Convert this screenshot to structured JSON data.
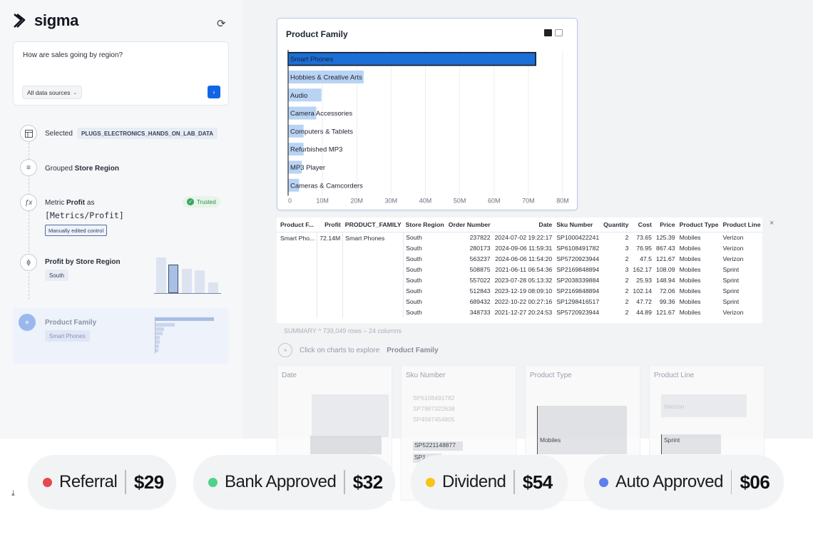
{
  "app": {
    "brand": "sigma",
    "refresh_icon": "refresh-icon"
  },
  "prompt": {
    "question": "How are sales going by region?",
    "source_label": "All data sources",
    "send_icon": "arrow-right-icon"
  },
  "steps": {
    "selected": {
      "label": "Selected",
      "value": "PLUGS_ELECTRONICS_HANDS_ON_LAB_DATA"
    },
    "grouped": {
      "label": "Grouped",
      "value": "Store Region"
    },
    "metric": {
      "label": "Metric",
      "value": "Profit",
      "suffix": "as",
      "formula": "[Metrics/Profit]",
      "note": "Manually edited control",
      "badge": "Trusted"
    },
    "profit_region": {
      "title": "Profit by Store Region",
      "chip": "South"
    },
    "product_family": {
      "title": "Product Family",
      "chip": "Smart Phones"
    }
  },
  "chart_data": {
    "type": "bar",
    "orientation": "horizontal",
    "title": "Product Family",
    "categories": [
      "Smart Phones",
      "Hobbies & Creative Arts",
      "Audio",
      "Camera Accessories",
      "Computers & Tablets",
      "Refurbished MP3",
      "MP3 Player",
      "Cameras & Camcorders"
    ],
    "values": [
      72.14,
      22,
      9.7,
      8.2,
      4.5,
      4.5,
      4.0,
      3.2
    ],
    "unit": "M",
    "xlim": [
      0,
      80
    ],
    "x_ticks": [
      "0",
      "10M",
      "20M",
      "30M",
      "40M",
      "50M",
      "60M",
      "70M",
      "80M"
    ],
    "highlighted": "Smart Phones",
    "colors": {
      "selected": "#1b6fd6",
      "other": "#b9d3f3"
    },
    "grid": true
  },
  "table": {
    "headers": [
      "Product F...",
      "Profit",
      "PRODUCT_FAMILY",
      "Store Region",
      "Order Number",
      "Date",
      "Sku Number",
      "Quantity",
      "Cost",
      "Price",
      "Product Type",
      "Product Line"
    ],
    "group": {
      "name": "Smart Pho...",
      "profit": "72.14M",
      "family": "Smart Phones"
    },
    "rows": [
      [
        "South",
        "237822",
        "2024-07-02 19:22:17",
        "SP1000422241",
        "2",
        "73.65",
        "125.39",
        "Mobiles",
        "Verizon"
      ],
      [
        "South",
        "280173",
        "2024-09-06 11:59:31",
        "SP6108491782",
        "3",
        "76.95",
        "867.43",
        "Mobiles",
        "Verizon"
      ],
      [
        "South",
        "563237",
        "2024-06-06 11:54:20",
        "SP5720923944",
        "2",
        "47.5",
        "121.67",
        "Mobiles",
        "Verizon"
      ],
      [
        "South",
        "508875",
        "2021-06-11 06:54:36",
        "SP2169848894",
        "3",
        "162.17",
        "108.09",
        "Mobiles",
        "Sprint"
      ],
      [
        "South",
        "557022",
        "2023-07-28 05:13:32",
        "SP2038339884",
        "2",
        "25.93",
        "148.94",
        "Mobiles",
        "Sprint"
      ],
      [
        "South",
        "512843",
        "2023-12-19 08:09:10",
        "SP2169848894",
        "2",
        "102.14",
        "72.06",
        "Mobiles",
        "Sprint"
      ],
      [
        "South",
        "689432",
        "2022-10-22 00:27:16",
        "SP1298416517",
        "2",
        "47.72",
        "99.36",
        "Mobiles",
        "Sprint"
      ],
      [
        "South",
        "348733",
        "2021-12-27 20:24:53",
        "SP5720923944",
        "2",
        "44.89",
        "121.67",
        "Mobiles",
        "Verizon"
      ]
    ],
    "summary": "SUMMARY ^ 739,049 rows – 24 columns"
  },
  "explore": {
    "prefix": "Click on charts to explore",
    "target": "Product Family"
  },
  "mini_cards": {
    "titles": [
      "Date",
      "Sku Number",
      "Product Type",
      "Product Line"
    ],
    "sku_items": [
      "SP6108491782",
      "SP7987322638",
      "SP4567454805",
      "SP5221148877",
      "SP1"
    ],
    "product_type": "Mobiles",
    "product_line": [
      "Verizon",
      "Sprint"
    ],
    "axis_hint": "$0"
  },
  "pills": [
    {
      "label": "Referral",
      "value": "$29",
      "color": "#e5484d"
    },
    {
      "label": "Bank Approved",
      "value": "$32",
      "color": "#4cd38a"
    },
    {
      "label": "Dividend",
      "value": "$54",
      "color": "#f5c518"
    },
    {
      "label": "Auto Approved",
      "value": "$06",
      "color": "#5b7ff0"
    }
  ]
}
